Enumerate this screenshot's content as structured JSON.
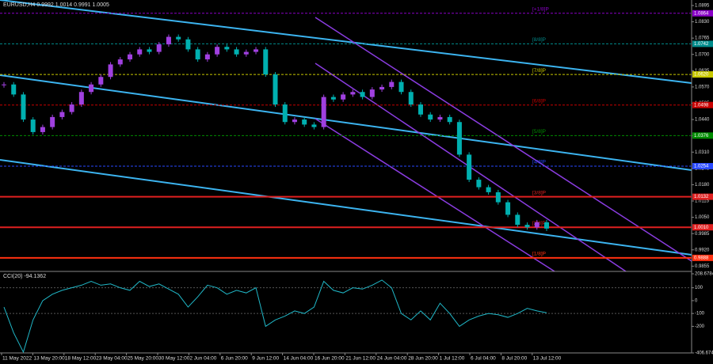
{
  "chart_data": {
    "type": "candlestick",
    "title": "EURUSD,H4 0.9992 1.0014 0.9991 1.0005",
    "up_color": "#a040e0",
    "down_color": "#00b0b0",
    "ylim": [
      0.9834,
      1.0917
    ],
    "yticks": [
      {
        "value": 1.0895,
        "label": "1.0895"
      },
      {
        "value": 1.083,
        "label": "1.0830"
      },
      {
        "value": 1.0765,
        "label": "1.0765"
      },
      {
        "value": 1.07,
        "label": "1.0700"
      },
      {
        "value": 1.0635,
        "label": "1.0635"
      },
      {
        "value": 1.057,
        "label": "1.0570"
      },
      {
        "value": 1.0505,
        "label": "1.0505"
      },
      {
        "value": 1.044,
        "label": "1.0440"
      },
      {
        "value": 1.0375,
        "label": "1.0375"
      },
      {
        "value": 1.031,
        "label": "1.0310"
      },
      {
        "value": 1.0245,
        "label": "1.0245"
      },
      {
        "value": 1.018,
        "label": "1.0180"
      },
      {
        "value": 1.0115,
        "label": "1.0115"
      },
      {
        "value": 1.005,
        "label": "1.0050"
      },
      {
        "value": 0.9985,
        "label": "0.9985"
      },
      {
        "value": 0.992,
        "label": "0.9920"
      },
      {
        "value": 0.9855,
        "label": "0.9855"
      }
    ],
    "categories": [
      "11 May 2022",
      "13 May 20:00",
      "18 May 12:00",
      "23 May 04:00",
      "25 May 20:00",
      "30 May 12:00",
      "2 Jun 04:00",
      "6 Jun 20:00",
      "9 Jun 12:00",
      "14 Jun 04:00",
      "16 Jun 20:00",
      "21 Jun 12:00",
      "24 Jun 04:00",
      "28 Jun 20:00",
      "1 Jul 12:00",
      "6 Jul 04:00",
      "8 Jul 20:00",
      "13 Jul 12:00"
    ],
    "closes": [
      1.058,
      1.054,
      1.044,
      1.039,
      1.041,
      1.045,
      1.047,
      1.05,
      1.055,
      1.058,
      1.061,
      1.066,
      1.068,
      1.07,
      1.072,
      1.071,
      1.074,
      1.077,
      1.076,
      1.072,
      1.068,
      1.07,
      1.073,
      1.072,
      1.07,
      1.071,
      1.072,
      1.062,
      1.05,
      1.043,
      1.044,
      1.042,
      1.041,
      1.053,
      1.052,
      1.054,
      1.055,
      1.053,
      1.056,
      1.057,
      1.059,
      1.055,
      1.05,
      1.046,
      1.044,
      1.045,
      1.043,
      1.03,
      1.02,
      1.017,
      1.015,
      1.011,
      1.006,
      1.002,
      1.001,
      1.003,
      1.0005
    ],
    "levels": [
      {
        "name": "[+1/8]P",
        "value": 1.0864,
        "label": "1.0864",
        "color": "#8a00c8"
      },
      {
        "name": "[8/8]P",
        "value": 1.0742,
        "label": "1.0742",
        "color": "#008c8c"
      },
      {
        "name": "[7/8]P",
        "value": 1.062,
        "label": "1.0620",
        "color": "#c8c800"
      },
      {
        "name": "[6/8]P",
        "value": 1.0498,
        "label": "1.0498",
        "color": "#c80000"
      },
      {
        "name": "[5/8]P",
        "value": 1.0376,
        "label": "1.0376",
        "color": "#008c00"
      },
      {
        "name": "[4/8]P",
        "value": 1.0254,
        "label": "1.0254",
        "color": "#2848ff"
      },
      {
        "name": "[3/8]P",
        "value": 1.0132,
        "label": "1.0132",
        "color": "#e02020"
      },
      {
        "name": "[2/8]P",
        "value": 1.001,
        "label": "1.0010",
        "color": "#e02020"
      },
      {
        "name": "[1/8]P",
        "value": 0.9888,
        "label": "0.9888",
        "color": "#ff3010"
      }
    ]
  },
  "indicator": {
    "title": "CCI(20) -94.1362",
    "color": "#20b8c8",
    "ylim": [
      -406.6745,
      208.6784
    ],
    "yticks": [
      208.6784,
      100,
      0,
      -100,
      -200,
      -406.6745
    ],
    "values": [
      -50,
      -250,
      -400,
      -150,
      0,
      50,
      80,
      100,
      120,
      150,
      120,
      130,
      100,
      80,
      150,
      110,
      130,
      90,
      50,
      -50,
      30,
      120,
      100,
      50,
      80,
      60,
      100,
      -200,
      -150,
      -120,
      -80,
      -100,
      -50,
      150,
      80,
      60,
      100,
      90,
      120,
      160,
      100,
      -100,
      -150,
      -80,
      -150,
      -20,
      -100,
      -200,
      -150,
      -120,
      -100,
      -110,
      -130,
      -100,
      -60,
      -80,
      -94.1362
    ]
  }
}
